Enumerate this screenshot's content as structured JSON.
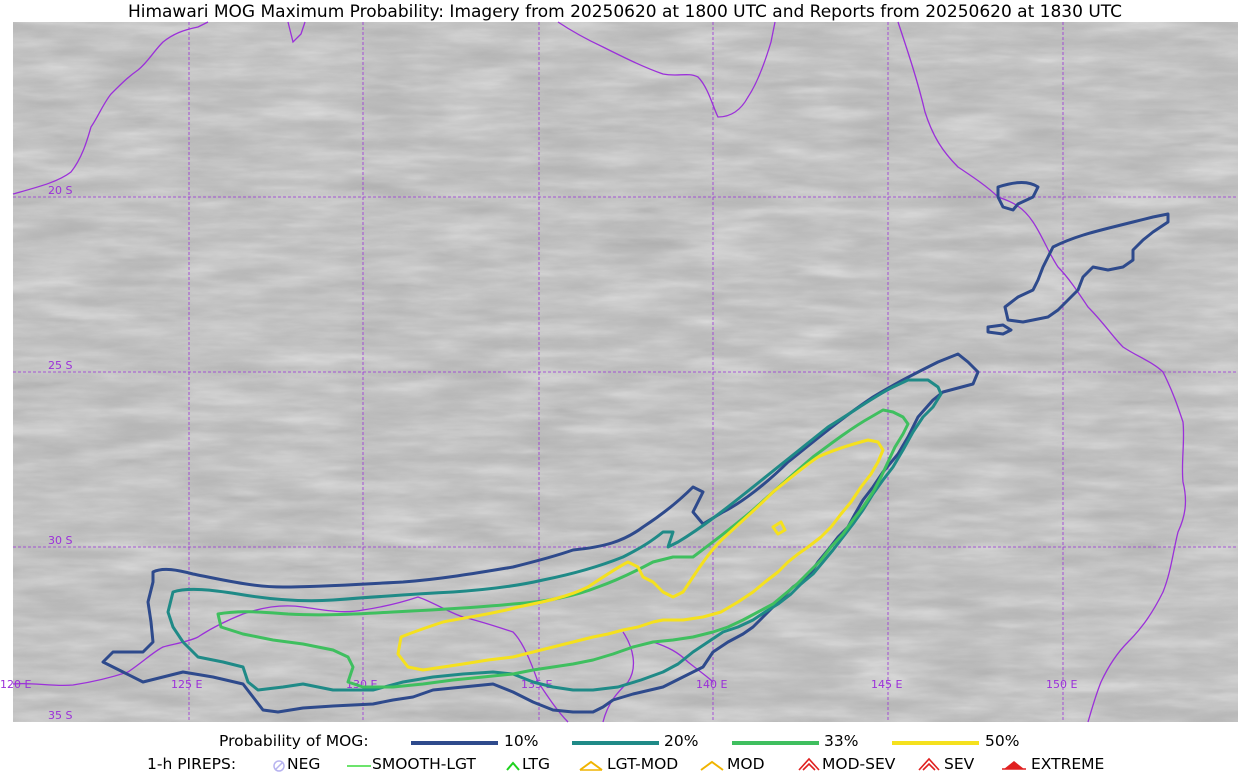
{
  "title": "Himawari MOG Maximum Probability: Imagery from 20250620 at 1800 UTC and Reports from 20250620 at 1830 UTC",
  "map": {
    "background": "satellite imagery (grayscale)",
    "coastline_color": "#9b30d9",
    "grid_color": "#9b30d9",
    "lat_labels": [
      "20 S",
      "25 S",
      "30 S",
      "35 S"
    ],
    "lon_labels": [
      "120 E",
      "125 E",
      "130 E",
      "135 E",
      "140 E",
      "145 E",
      "150 E"
    ]
  },
  "legend_probability": {
    "label": "Probability of MOG:",
    "items": [
      {
        "label": "10%",
        "color": "#2e4a8c"
      },
      {
        "label": "20%",
        "color": "#1f8a87"
      },
      {
        "label": "33%",
        "color": "#3fbf5f"
      },
      {
        "label": "50%",
        "color": "#f5e11e"
      }
    ]
  },
  "legend_pireps": {
    "label": "1-h PIREPS:",
    "items": [
      {
        "label": "NEG",
        "icon": "neg-icon",
        "color": "#b8b4f0"
      },
      {
        "label": "SMOOTH-LGT",
        "icon": "smooth-lgt-icon",
        "color": "#3cdc3c"
      },
      {
        "label": "LTG",
        "icon": "ltg-icon",
        "color": "#1ed21e"
      },
      {
        "label": "LGT-MOD",
        "icon": "lgt-mod-icon",
        "color": "#f0b400"
      },
      {
        "label": "MOD",
        "icon": "mod-icon",
        "color": "#f0b400"
      },
      {
        "label": "MOD-SEV",
        "icon": "mod-sev-icon",
        "color": "#e02020"
      },
      {
        "label": "SEV",
        "icon": "sev-icon",
        "color": "#e02020"
      },
      {
        "label": "EXTREME",
        "icon": "extreme-icon",
        "color": "#e02020"
      }
    ]
  }
}
